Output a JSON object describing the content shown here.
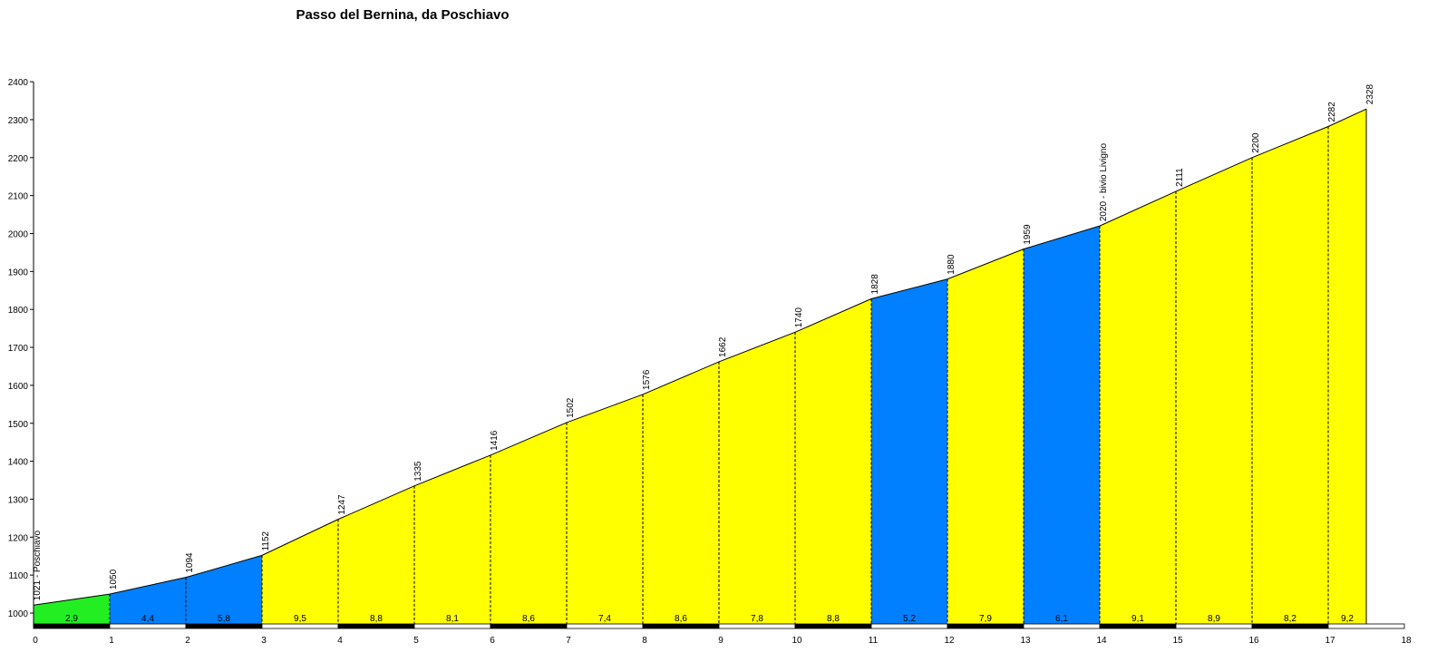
{
  "chart_data": {
    "type": "area",
    "title": "Passo del Bernina, da Poschiavo",
    "xlabel": "",
    "ylabel": "",
    "xlim": [
      0,
      18
    ],
    "ylim": [
      950,
      2400
    ],
    "x_ticks": [
      0,
      1,
      2,
      3,
      4,
      5,
      6,
      7,
      8,
      9,
      10,
      11,
      12,
      13,
      14,
      15,
      16,
      17,
      18
    ],
    "y_ticks": [
      1000,
      1100,
      1200,
      1300,
      1400,
      1500,
      1600,
      1700,
      1800,
      1900,
      2000,
      2100,
      2200,
      2300,
      2400
    ],
    "points": [
      {
        "x": 0,
        "y": 1021,
        "label": "1021 - Poschiavo"
      },
      {
        "x": 1,
        "y": 1050,
        "label": "1050"
      },
      {
        "x": 2,
        "y": 1094,
        "label": "1094"
      },
      {
        "x": 3,
        "y": 1152,
        "label": "1152"
      },
      {
        "x": 4,
        "y": 1247,
        "label": "1247"
      },
      {
        "x": 5,
        "y": 1335,
        "label": "1335"
      },
      {
        "x": 6,
        "y": 1416,
        "label": "1416"
      },
      {
        "x": 7,
        "y": 1502,
        "label": "1502"
      },
      {
        "x": 8,
        "y": 1576,
        "label": "1576"
      },
      {
        "x": 9,
        "y": 1662,
        "label": "1662"
      },
      {
        "x": 10,
        "y": 1740,
        "label": "1740"
      },
      {
        "x": 11,
        "y": 1828,
        "label": "1828"
      },
      {
        "x": 12,
        "y": 1880,
        "label": "1880"
      },
      {
        "x": 13,
        "y": 1959,
        "label": "1959"
      },
      {
        "x": 14,
        "y": 2020,
        "label": "2020 - bivio Livigno"
      },
      {
        "x": 15,
        "y": 2111,
        "label": "2111"
      },
      {
        "x": 16,
        "y": 2200,
        "label": "2200"
      },
      {
        "x": 17,
        "y": 2282,
        "label": "2282"
      },
      {
        "x": 17.5,
        "y": 2328,
        "label": "2328"
      }
    ],
    "segments": [
      {
        "from": 0,
        "to": 1,
        "grade": "2,9",
        "color": "#22ee22"
      },
      {
        "from": 1,
        "to": 2,
        "grade": "4,4",
        "color": "#0080ff"
      },
      {
        "from": 2,
        "to": 3,
        "grade": "5,8",
        "color": "#0080ff"
      },
      {
        "from": 3,
        "to": 4,
        "grade": "9,5",
        "color": "#ffff00"
      },
      {
        "from": 4,
        "to": 5,
        "grade": "8,8",
        "color": "#ffff00"
      },
      {
        "from": 5,
        "to": 6,
        "grade": "8,1",
        "color": "#ffff00"
      },
      {
        "from": 6,
        "to": 7,
        "grade": "8,6",
        "color": "#ffff00"
      },
      {
        "from": 7,
        "to": 8,
        "grade": "7,4",
        "color": "#ffff00"
      },
      {
        "from": 8,
        "to": 9,
        "grade": "8,6",
        "color": "#ffff00"
      },
      {
        "from": 9,
        "to": 10,
        "grade": "7,8",
        "color": "#ffff00"
      },
      {
        "from": 10,
        "to": 11,
        "grade": "8,8",
        "color": "#ffff00"
      },
      {
        "from": 11,
        "to": 12,
        "grade": "5,2",
        "color": "#0080ff"
      },
      {
        "from": 12,
        "to": 13,
        "grade": "7,9",
        "color": "#ffff00"
      },
      {
        "from": 13,
        "to": 14,
        "grade": "6,1",
        "color": "#0080ff"
      },
      {
        "from": 14,
        "to": 15,
        "grade": "9,1",
        "color": "#ffff00"
      },
      {
        "from": 15,
        "to": 16,
        "grade": "8,9",
        "color": "#ffff00"
      },
      {
        "from": 16,
        "to": 17,
        "grade": "8,2",
        "color": "#ffff00"
      },
      {
        "from": 17,
        "to": 17.5,
        "grade": "9,2",
        "color": "#ffff00"
      }
    ]
  }
}
